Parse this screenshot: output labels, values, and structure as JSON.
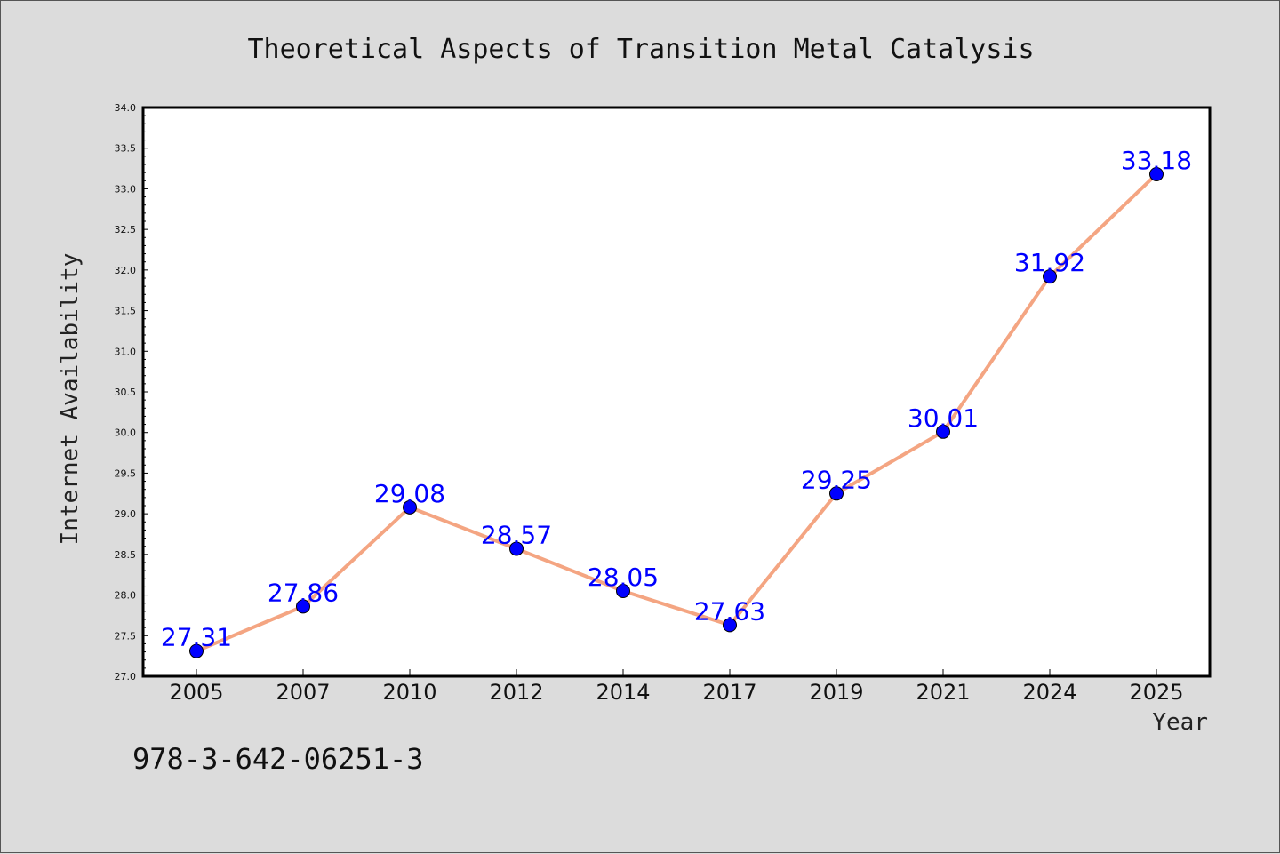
{
  "chart_data": {
    "type": "line",
    "title": "Theoretical Aspects of Transition Metal Catalysis",
    "xlabel": "Year",
    "ylabel": "Internet Availability",
    "categories": [
      "2005",
      "2007",
      "2010",
      "2012",
      "2014",
      "2017",
      "2019",
      "2021",
      "2024",
      "2025"
    ],
    "series": [
      {
        "values": [
          27.31,
          27.86,
          29.08,
          28.57,
          28.05,
          27.63,
          29.25,
          30.01,
          31.92,
          33.18
        ]
      }
    ],
    "data_labels": [
      "27.31",
      "27.86",
      "29.08",
      "28.57",
      "28.05",
      "27.63",
      "29.25",
      "30.01",
      "31.92",
      "33.18"
    ],
    "ylim": [
      27.0,
      34.0
    ],
    "yticks": [
      "27.0",
      "27.5",
      "28.0",
      "28.5",
      "29.0",
      "29.5",
      "30.0",
      "30.5",
      "31.0",
      "31.5",
      "32.0",
      "32.5",
      "33.0",
      "33.5",
      "34.0"
    ],
    "grid": false,
    "colors": {
      "line": "#f4a582",
      "marker": "#0000ff",
      "label": "#0000ff",
      "background": "#dcdcdc",
      "plot_background": "#ffffff"
    }
  },
  "footer": {
    "isbn": "978-3-642-06251-3"
  }
}
